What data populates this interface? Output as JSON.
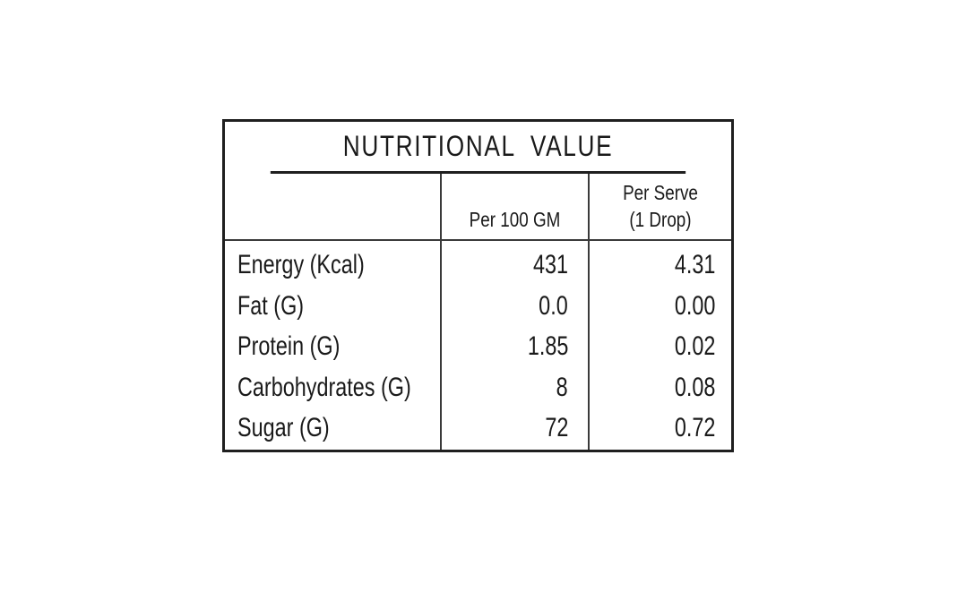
{
  "title": "NUTRITIONAL  VALUE",
  "headers": {
    "per_100": "Per 100 GM",
    "per_serve_line1": "Per Serve",
    "per_serve_line2": "(1 Drop)"
  },
  "rows": [
    {
      "label": "Energy (Kcal)",
      "per_100": "431",
      "per_serve": "4.31"
    },
    {
      "label": "Fat (G)",
      "per_100": "0.0",
      "per_serve": "0.00"
    },
    {
      "label": "Protein (G)",
      "per_100": "1.85",
      "per_serve": "0.02"
    },
    {
      "label": "Carbohydrates (G)",
      "per_100": "8",
      "per_serve": "0.08"
    },
    {
      "label": "Sugar (G)",
      "per_100": "72",
      "per_serve": "0.72"
    }
  ]
}
